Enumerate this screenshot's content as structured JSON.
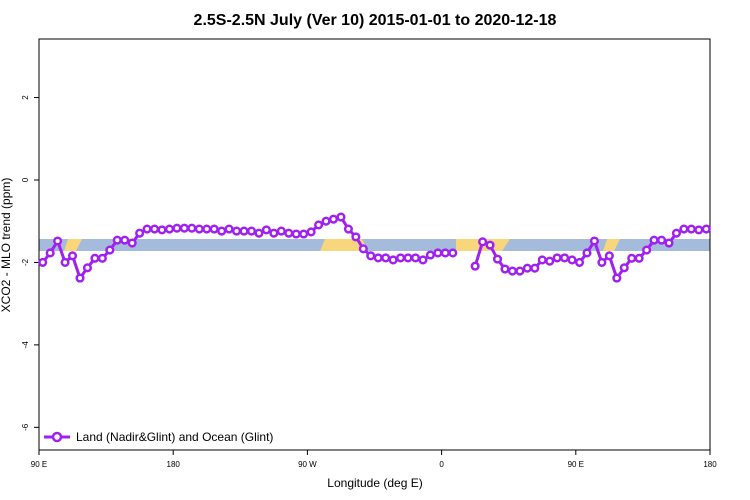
{
  "chart_data": {
    "type": "line",
    "title": "2.5S-2.5N July (Ver 10)   2015-01-01 to 2020-12-18",
    "x_label": "Longitude (deg E)",
    "y_label": "XCO2 - MLO trend (ppm)",
    "x": [
      92.5,
      97.5,
      102.5,
      107.5,
      112.5,
      117.5,
      122.5,
      127.5,
      132.5,
      137.5,
      142.5,
      147.5,
      152.5,
      157.5,
      162.5,
      167.5,
      172.5,
      177.5,
      182.5,
      187.5,
      192.5,
      197.5,
      202.5,
      207.5,
      212.5,
      217.5,
      222.5,
      227.5,
      232.5,
      237.5,
      242.5,
      247.5,
      252.5,
      257.5,
      262.5,
      267.5,
      272.5,
      277.5,
      282.5,
      287.5,
      292.5,
      297.5,
      302.5,
      307.5,
      312.5,
      317.5,
      322.5,
      327.5,
      332.5,
      337.5,
      342.5,
      347.5,
      352.5,
      357.5,
      362.5,
      367.5,
      372.5,
      377.5,
      382.5,
      387.5,
      392.5,
      397.5,
      402.5,
      407.5,
      412.5,
      417.5,
      422.5,
      427.5,
      432.5,
      437.5,
      442.5,
      447.5,
      452.5,
      457.5,
      462.5,
      467.5,
      472.5,
      477.5,
      482.5,
      487.5,
      492.5,
      497.5,
      502.5,
      507.5,
      512.5,
      517.5,
      522.5,
      527.5,
      532.5,
      537.5
    ],
    "series": [
      {
        "name": "Land (Nadir&Glint) and Ocean (Glint)",
        "color": "#a020f0",
        "values": [
          -2.0,
          -1.77,
          -1.48,
          -2.0,
          -1.84,
          -2.38,
          -2.13,
          -1.9,
          -1.9,
          -1.7,
          -1.46,
          -1.46,
          -1.53,
          -1.29,
          -1.19,
          -1.19,
          -1.21,
          -1.19,
          -1.17,
          -1.17,
          -1.17,
          -1.19,
          -1.19,
          -1.19,
          -1.24,
          -1.19,
          -1.24,
          -1.24,
          -1.24,
          -1.29,
          -1.21,
          -1.29,
          -1.24,
          -1.29,
          -1.31,
          -1.31,
          -1.26,
          -1.09,
          -1.0,
          -0.95,
          -0.9,
          -1.19,
          -1.38,
          -1.67,
          -1.84,
          -1.89,
          -1.89,
          -1.94,
          -1.89,
          -1.89,
          -1.89,
          -1.94,
          -1.82,
          -1.77,
          -1.77,
          -1.77,
          null,
          null,
          -2.09,
          -1.5,
          -1.58,
          -1.92,
          -2.16,
          -2.21,
          -2.21,
          -2.14,
          -2.14,
          -1.94,
          -1.97,
          -1.89,
          -1.89,
          -1.94,
          -2.0,
          -1.77,
          -1.48,
          -2.0,
          -1.84,
          -2.38,
          -2.13,
          -1.9,
          -1.9,
          -1.7,
          -1.46,
          -1.46,
          -1.53,
          -1.29,
          -1.19,
          -1.19,
          -1.21,
          -1.19
        ]
      }
    ],
    "xlim": [
      90,
      540
    ],
    "xticks": [
      {
        "value": 90,
        "label": "90 E"
      },
      180,
      {
        "value": 270,
        "label": "90 W"
      },
      {
        "value": 360,
        "label": "0"
      },
      {
        "value": 450,
        "label": "90 E"
      },
      {
        "value": 540,
        "label": "180"
      }
    ],
    "ylim": [
      -6.55,
      3.42
    ],
    "yticks": [
      2,
      0,
      -2,
      -4,
      -6
    ],
    "grid": false,
    "legend": "bottom-left"
  }
}
